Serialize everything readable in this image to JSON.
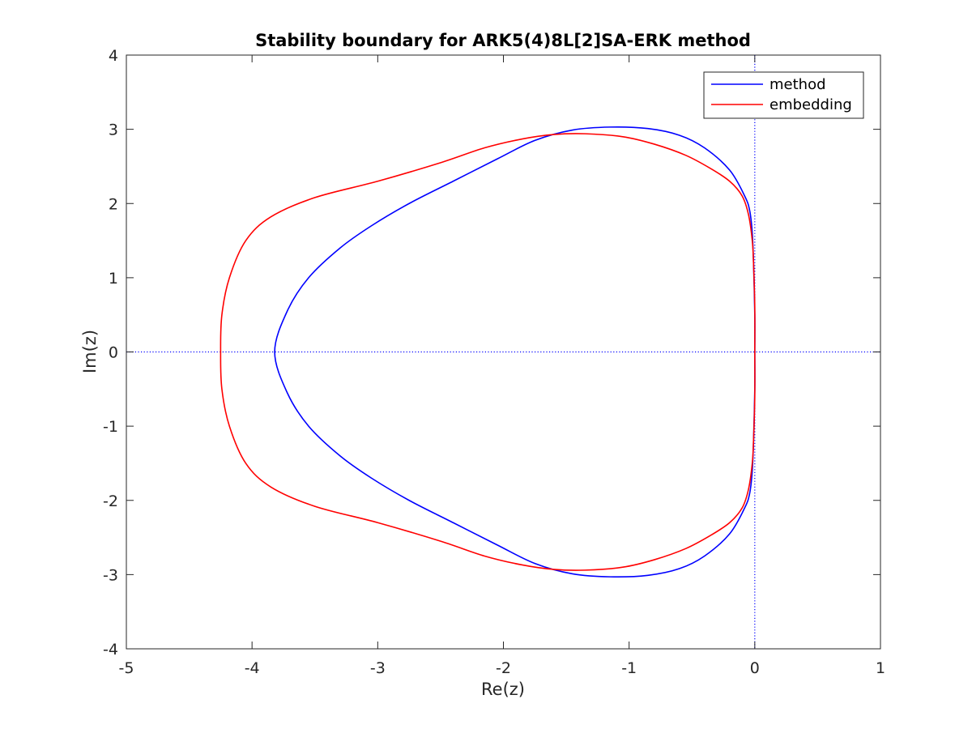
{
  "chart_data": {
    "type": "line",
    "title": "Stability boundary for ARK5(4)8L[2]SA-ERK method",
    "xlabel": "Re(z)",
    "ylabel": "Im(z)",
    "xlim": [
      -5,
      1
    ],
    "ylim": [
      -4,
      4
    ],
    "xticks": [
      -5,
      -4,
      -3,
      -2,
      -1,
      0,
      1
    ],
    "yticks": [
      -4,
      -3,
      -2,
      -1,
      0,
      1,
      2,
      3,
      4
    ],
    "xtick_labels": [
      "-5",
      "-4",
      "-3",
      "-2",
      "-1",
      "0",
      "1"
    ],
    "ytick_labels": [
      "-4",
      "-3",
      "-2",
      "-1",
      "0",
      "1",
      "2",
      "3",
      "4"
    ],
    "grid": false,
    "legend_position": "top-right",
    "reference_lines": [
      {
        "orientation": "vertical",
        "value": 0,
        "style": "dotted",
        "color": "#0000ff"
      },
      {
        "orientation": "horizontal",
        "value": 0,
        "style": "dotted",
        "color": "#0000ff"
      }
    ],
    "series": [
      {
        "name": "method",
        "color": "#0000ff",
        "closed": true,
        "points_upper_half": [
          [
            0.0,
            0.0
          ],
          [
            0.0,
            0.5
          ],
          [
            -0.01,
            1.2
          ],
          [
            -0.02,
            1.6
          ],
          [
            -0.04,
            1.9
          ],
          [
            -0.08,
            2.1
          ],
          [
            -0.2,
            2.45
          ],
          [
            -0.4,
            2.75
          ],
          [
            -0.6,
            2.92
          ],
          [
            -0.85,
            3.01
          ],
          [
            -1.15,
            3.03
          ],
          [
            -1.45,
            2.99
          ],
          [
            -1.75,
            2.85
          ],
          [
            -2.05,
            2.6
          ],
          [
            -2.4,
            2.3
          ],
          [
            -2.75,
            2.0
          ],
          [
            -3.05,
            1.7
          ],
          [
            -3.3,
            1.4
          ],
          [
            -3.55,
            1.0
          ],
          [
            -3.72,
            0.55
          ],
          [
            -3.82,
            0.0
          ]
        ]
      },
      {
        "name": "embedding",
        "color": "#ff0000",
        "closed": true,
        "points_upper_half": [
          [
            0.0,
            0.0
          ],
          [
            0.0,
            0.6
          ],
          [
            -0.01,
            1.2
          ],
          [
            -0.02,
            1.5
          ],
          [
            -0.05,
            1.85
          ],
          [
            -0.1,
            2.1
          ],
          [
            -0.2,
            2.3
          ],
          [
            -0.35,
            2.47
          ],
          [
            -0.55,
            2.65
          ],
          [
            -0.8,
            2.8
          ],
          [
            -1.05,
            2.9
          ],
          [
            -1.35,
            2.94
          ],
          [
            -1.6,
            2.93
          ],
          [
            -1.85,
            2.87
          ],
          [
            -2.15,
            2.75
          ],
          [
            -2.5,
            2.55
          ],
          [
            -3.0,
            2.3
          ],
          [
            -3.5,
            2.08
          ],
          [
            -3.85,
            1.82
          ],
          [
            -4.05,
            1.5
          ],
          [
            -4.18,
            1.0
          ],
          [
            -4.24,
            0.5
          ],
          [
            -4.25,
            0.0
          ]
        ]
      }
    ]
  }
}
